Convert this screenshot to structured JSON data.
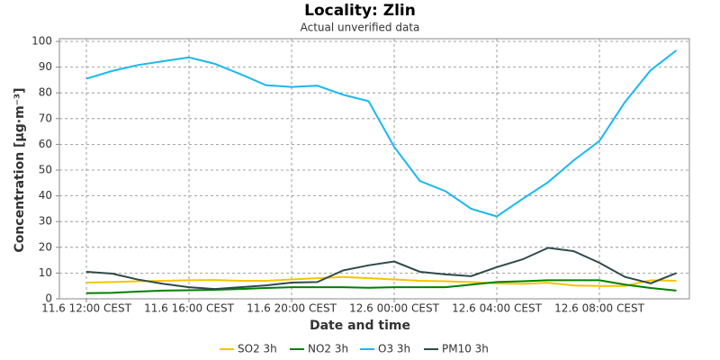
{
  "chart_data": {
    "type": "line",
    "title": "Locality: Zlin",
    "subtitle": "Actual unverified data",
    "xlabel": "Date and time",
    "ylabel": "Concentration [µg·m⁻³]",
    "categories": [
      "11.6 12:00 CEST",
      null,
      null,
      null,
      "11.6 16:00 CEST",
      null,
      null,
      null,
      "11.6 20:00 CEST",
      null,
      null,
      null,
      "12.6 00:00 CEST",
      null,
      null,
      null,
      "12.6 04:00 CEST",
      null,
      null,
      null,
      "12.6 08:00 CEST",
      null,
      null,
      null
    ],
    "series": [
      {
        "name": "SO2 3h",
        "color": "#f5c400",
        "values": [
          6.3,
          6.5,
          6.8,
          7,
          7.2,
          7.3,
          7,
          7,
          7.5,
          8,
          8.5,
          8,
          7.5,
          7,
          6.8,
          6.5,
          6,
          5.8,
          6.2,
          5.2,
          5,
          5,
          7.2,
          7
        ]
      },
      {
        "name": "NO2 3h",
        "color": "#008000",
        "values": [
          2.2,
          2.3,
          2.8,
          3.2,
          3.3,
          3.5,
          3.8,
          4.2,
          4.5,
          4.5,
          4.5,
          4.3,
          4.5,
          4.5,
          4.5,
          5.5,
          6.5,
          6.8,
          7.2,
          7.2,
          7.2,
          5.5,
          4.2,
          3.2
        ]
      },
      {
        "name": "O3 3h",
        "color": "#1ab8f0",
        "values": [
          85.5,
          88.5,
          90.8,
          92.3,
          93.8,
          91.3,
          87.3,
          83,
          82.3,
          82.8,
          79.3,
          76.8,
          59,
          45.8,
          41.8,
          35,
          32,
          38.8,
          45.3,
          53.8,
          61.3,
          76.5,
          88.8,
          96.5
        ]
      },
      {
        "name": "PM10 3h",
        "color": "#2e4a4a",
        "values": [
          10.5,
          9.8,
          7.5,
          5.8,
          4.5,
          3.8,
          4.5,
          5.2,
          6.3,
          6.5,
          11,
          13,
          14.5,
          10.5,
          9.5,
          8.8,
          12.3,
          15.3,
          19.8,
          18.5,
          14,
          8.5,
          6,
          10
        ]
      }
    ],
    "ylim": [
      0,
      100
    ],
    "yticks": [
      0,
      10,
      20,
      30,
      40,
      50,
      60,
      70,
      80,
      90,
      100
    ],
    "grid": true,
    "legend": "bottom"
  }
}
